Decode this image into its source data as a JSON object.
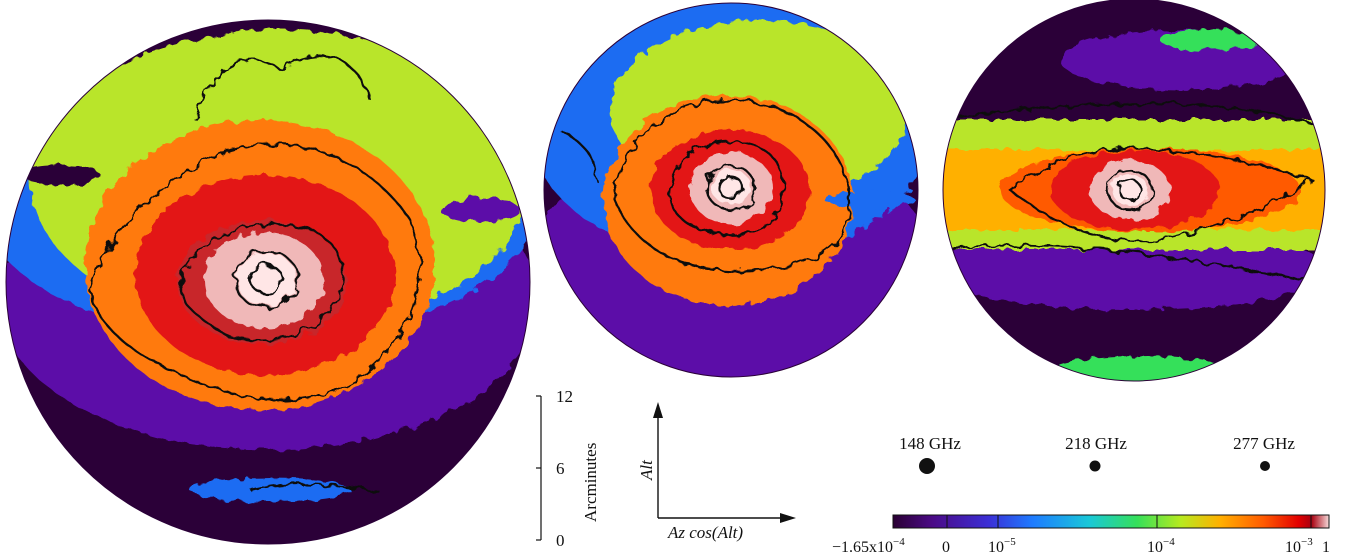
{
  "beam_maps": [
    {
      "name": "148-ghz-beam-map"
    },
    {
      "name": "218-ghz-beam-map"
    },
    {
      "name": "277-ghz-beam-map"
    }
  ],
  "scale_bar": {
    "label": "Arcminutes",
    "ticks": [
      "12",
      "6",
      "0"
    ]
  },
  "axes": {
    "y_label": "Alt",
    "x_label": "Az cos(Alt)"
  },
  "beam_sizes": [
    {
      "label": "148 GHz"
    },
    {
      "label": "218 GHz"
    },
    {
      "label": "277 GHz"
    }
  ],
  "colorbar": {
    "tick_labels": [
      "−1.65x10",
      "0",
      "10",
      "10",
      "10",
      "1"
    ],
    "exponents": [
      "−4",
      "−5",
      "−4",
      "−3"
    ],
    "colors": [
      "#2a0033",
      "#4b0a86",
      "#3b2fd6",
      "#1e7bff",
      "#19c8d8",
      "#35e05a",
      "#b7ea1f",
      "#ffb000",
      "#ff5a00",
      "#e20000",
      "#a80010",
      "#f6dada"
    ]
  },
  "colors": {
    "outside_dark": "#2b0038",
    "violet": "#5b10a8",
    "blue": "#1e6cf2",
    "yellow_green": "#b9e52a",
    "orange": "#ff7a10",
    "red": "#e31515",
    "pink": "#f0b8b8",
    "core": "#ffe6e6"
  }
}
